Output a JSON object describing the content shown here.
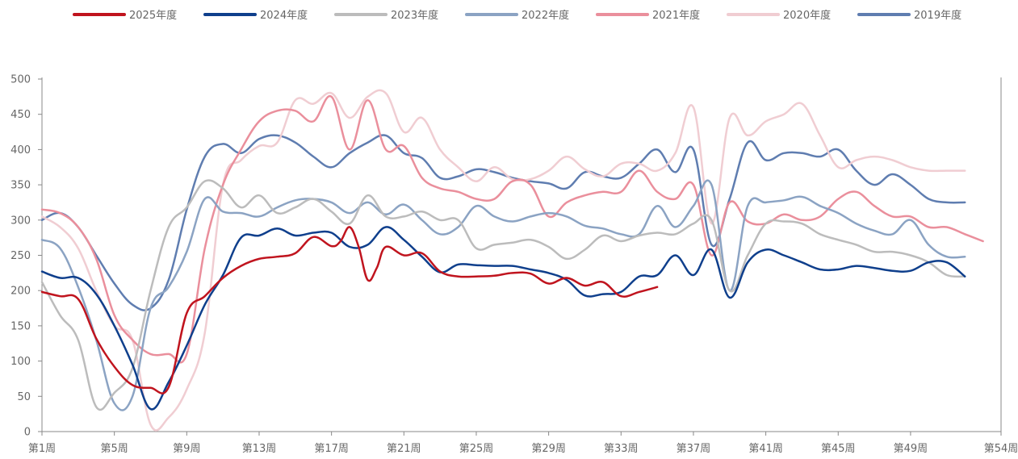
{
  "chart_data": {
    "type": "line",
    "title": "",
    "xlabel": "",
    "ylabel": "",
    "xlim": [
      1,
      54
    ],
    "ylim": [
      0,
      500
    ],
    "yticks": [
      0,
      50,
      100,
      150,
      200,
      250,
      300,
      350,
      400,
      450,
      500
    ],
    "xtick_weeks": [
      1,
      5,
      9,
      13,
      17,
      21,
      25,
      29,
      33,
      37,
      41,
      45,
      49,
      54
    ],
    "xtick_labels": [
      "第1周",
      "第5周",
      "第9周",
      "第13周",
      "第17周",
      "第21周",
      "第25周",
      "第29周",
      "第33周",
      "第37周",
      "第41周",
      "第45周",
      "第49周",
      "第54周"
    ],
    "grid": false,
    "legend_position": "top",
    "series": [
      {
        "name": "2025年度",
        "color": "#c0141e",
        "x": [
          1,
          2,
          3,
          4,
          5,
          6,
          7,
          8,
          9,
          10,
          11,
          12,
          13,
          14,
          15,
          16,
          17,
          17.5,
          18,
          18.5,
          19,
          19.5,
          20,
          21,
          22,
          23,
          24,
          25,
          26,
          27,
          28,
          29,
          30,
          31,
          32,
          33,
          34,
          35
        ],
        "values": [
          198,
          192,
          188,
          132,
          92,
          66,
          62,
          63,
          168,
          192,
          218,
          235,
          245,
          248,
          253,
          276,
          263,
          270,
          290,
          262,
          215,
          232,
          262,
          250,
          253,
          227,
          220,
          220,
          221,
          225,
          224,
          210,
          218,
          207,
          212,
          192,
          198,
          205
        ]
      },
      {
        "name": "2024年度",
        "color": "#0f3f8c",
        "x": [
          1,
          2,
          3,
          4,
          5,
          6,
          7,
          8,
          9,
          10,
          11,
          12,
          13,
          14,
          15,
          16,
          17,
          18,
          19,
          20,
          21,
          22,
          23,
          24,
          25,
          26,
          27,
          28,
          29,
          30,
          31,
          32,
          33,
          34,
          35,
          36,
          37,
          38,
          39,
          40,
          41,
          42,
          43,
          44,
          45,
          46,
          47,
          48,
          49,
          50,
          51,
          52
        ],
        "values": [
          227,
          218,
          218,
          195,
          150,
          95,
          32,
          70,
          122,
          180,
          222,
          275,
          278,
          288,
          278,
          282,
          282,
          262,
          265,
          290,
          272,
          248,
          226,
          237,
          236,
          235,
          235,
          230,
          225,
          215,
          193,
          195,
          198,
          220,
          222,
          250,
          222,
          258,
          190,
          240,
          258,
          250,
          240,
          230,
          230,
          235,
          232,
          228,
          228,
          240,
          240,
          220
        ]
      },
      {
        "name": "2023年度",
        "color": "#bcbcbc",
        "x": [
          1,
          2,
          3,
          4,
          5,
          6,
          7,
          8,
          9,
          10,
          11,
          12,
          13,
          14,
          15,
          16,
          17,
          18,
          19,
          20,
          21,
          22,
          23,
          24,
          25,
          26,
          27,
          28,
          29,
          30,
          31,
          32,
          33,
          34,
          35,
          36,
          37,
          38,
          39,
          40,
          41,
          42,
          43,
          44,
          45,
          46,
          47,
          48,
          49,
          50,
          51,
          52
        ],
        "values": [
          212,
          165,
          130,
          35,
          55,
          90,
          200,
          290,
          318,
          355,
          345,
          318,
          335,
          310,
          318,
          330,
          312,
          295,
          335,
          305,
          305,
          312,
          300,
          300,
          260,
          265,
          268,
          272,
          262,
          245,
          258,
          278,
          270,
          278,
          282,
          280,
          295,
          300,
          200,
          250,
          295,
          298,
          295,
          280,
          272,
          265,
          255,
          255,
          250,
          240,
          222,
          220
        ]
      },
      {
        "name": "2022年度",
        "color": "#8ba3c3",
        "x": [
          1,
          2,
          3,
          4,
          5,
          6,
          7,
          8,
          9,
          10,
          11,
          12,
          13,
          14,
          15,
          16,
          17,
          18,
          19,
          20,
          21,
          22,
          23,
          24,
          25,
          26,
          27,
          28,
          29,
          30,
          31,
          32,
          33,
          34,
          35,
          36,
          37,
          38,
          39,
          40,
          41,
          42,
          43,
          44,
          45,
          46,
          47,
          48,
          49,
          50,
          51,
          52
        ],
        "values": [
          272,
          260,
          205,
          130,
          40,
          50,
          175,
          205,
          255,
          330,
          312,
          310,
          305,
          318,
          328,
          330,
          325,
          310,
          325,
          308,
          322,
          300,
          280,
          290,
          320,
          305,
          298,
          305,
          310,
          305,
          292,
          288,
          280,
          280,
          320,
          290,
          320,
          350,
          200,
          320,
          325,
          328,
          333,
          320,
          310,
          295,
          285,
          280,
          300,
          265,
          248,
          248
        ]
      },
      {
        "name": "2021年度",
        "color": "#ea8f9c",
        "x": [
          1,
          2,
          3,
          4,
          5,
          6,
          7,
          8,
          9,
          10,
          11,
          12,
          13,
          14,
          15,
          16,
          17,
          18,
          19,
          20,
          21,
          22,
          23,
          24,
          25,
          26,
          27,
          28,
          29,
          30,
          31,
          32,
          33,
          34,
          35,
          36,
          37,
          38,
          39,
          40,
          41,
          42,
          43,
          44,
          45,
          46,
          47,
          48,
          49,
          50,
          51,
          52,
          53
        ],
        "values": [
          315,
          310,
          290,
          245,
          165,
          130,
          110,
          110,
          110,
          260,
          350,
          400,
          440,
          455,
          455,
          440,
          475,
          400,
          470,
          400,
          405,
          360,
          345,
          340,
          330,
          330,
          355,
          350,
          305,
          325,
          335,
          340,
          340,
          370,
          340,
          330,
          350,
          250,
          325,
          298,
          295,
          308,
          300,
          305,
          330,
          340,
          320,
          305,
          305,
          290,
          290,
          280,
          270
        ]
      },
      {
        "name": "2020年度",
        "color": "#f0cdd2",
        "x": [
          1,
          2,
          3,
          4,
          5,
          6,
          7,
          8,
          9,
          10,
          11,
          12,
          13,
          14,
          15,
          16,
          17,
          18,
          19,
          20,
          21,
          22,
          23,
          24,
          25,
          26,
          27,
          28,
          29,
          30,
          31,
          32,
          33,
          34,
          35,
          36,
          37,
          38,
          39,
          40,
          41,
          42,
          43,
          44,
          45,
          46,
          47,
          48,
          49,
          50,
          51,
          52
        ],
        "values": [
          305,
          290,
          260,
          200,
          150,
          130,
          10,
          20,
          60,
          140,
          350,
          385,
          405,
          410,
          470,
          465,
          480,
          445,
          475,
          480,
          425,
          445,
          400,
          375,
          355,
          375,
          358,
          358,
          370,
          390,
          372,
          362,
          380,
          380,
          370,
          395,
          460,
          295,
          445,
          420,
          440,
          450,
          465,
          420,
          375,
          385,
          390,
          385,
          375,
          370,
          370,
          370
        ]
      },
      {
        "name": "2019年度",
        "color": "#5f7db0",
        "x": [
          1,
          2,
          3,
          4,
          5,
          6,
          7,
          8,
          9,
          10,
          11,
          12,
          13,
          14,
          15,
          16,
          17,
          18,
          19,
          20,
          21,
          22,
          23,
          24,
          25,
          26,
          27,
          28,
          29,
          30,
          31,
          32,
          33,
          34,
          35,
          36,
          37,
          38,
          39,
          40,
          41,
          42,
          43,
          44,
          45,
          46,
          47,
          48,
          49,
          50,
          51,
          52
        ],
        "values": [
          300,
          310,
          290,
          250,
          210,
          180,
          175,
          215,
          315,
          390,
          408,
          395,
          415,
          420,
          410,
          390,
          375,
          395,
          410,
          420,
          395,
          388,
          360,
          362,
          372,
          368,
          360,
          355,
          352,
          345,
          368,
          362,
          360,
          380,
          400,
          368,
          400,
          265,
          330,
          410,
          385,
          395,
          395,
          390,
          400,
          370,
          350,
          365,
          350,
          330,
          325,
          325
        ]
      }
    ]
  }
}
